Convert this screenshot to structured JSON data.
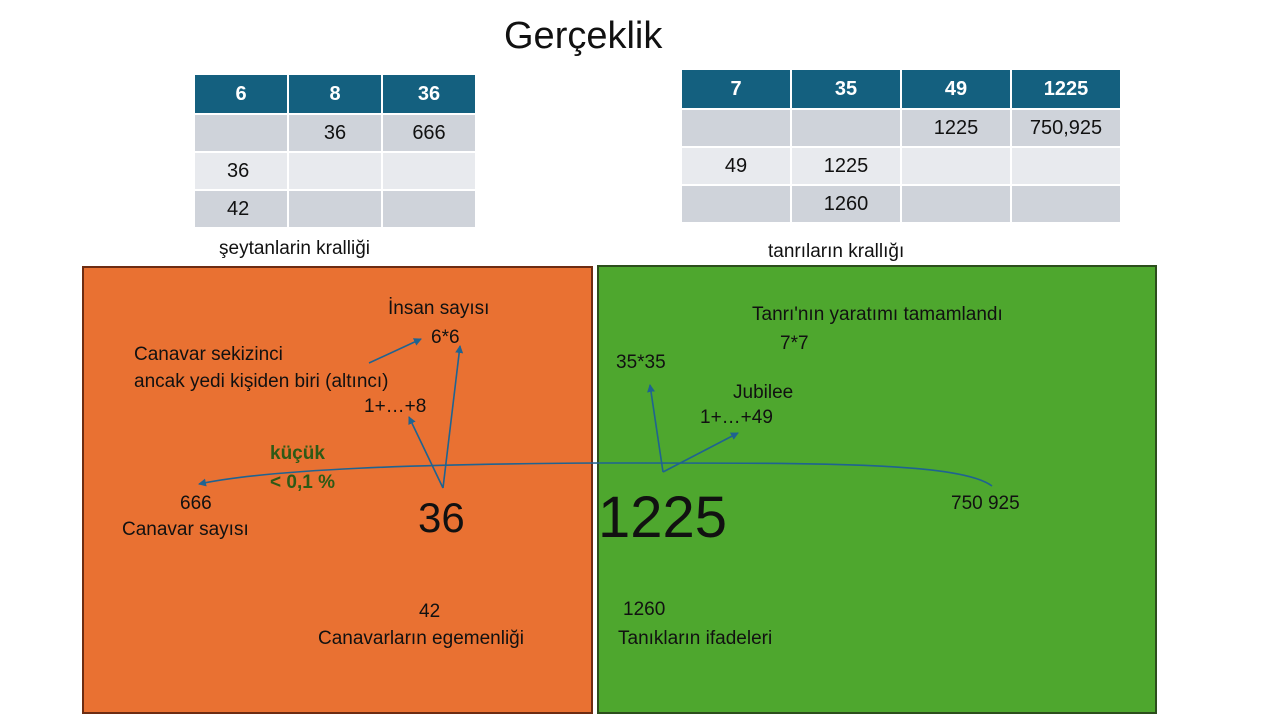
{
  "title": "Gerçeklik",
  "left_table": {
    "headers": [
      "6",
      "8",
      "36"
    ],
    "rows": [
      [
        "",
        "36",
        "666"
      ],
      [
        "36",
        "",
        ""
      ],
      [
        "42",
        "",
        ""
      ]
    ],
    "caption": "şeytanlarin kralliği"
  },
  "right_table": {
    "headers": [
      "7",
      "35",
      "49",
      "1225"
    ],
    "rows": [
      [
        "",
        "",
        "1225",
        "750,925"
      ],
      [
        "49",
        "1225",
        "",
        ""
      ],
      [
        "",
        "1260",
        "",
        ""
      ]
    ],
    "caption": "tanrıların krallığı"
  },
  "orange_panel": {
    "insan_label": "İnsan sayısı",
    "insan_value": "6*6",
    "canavar_line1": "Canavar sekizinci",
    "canavar_line2": "ancak yedi kişiden biri (altıncı)",
    "sum8": "1+…+8",
    "small_label": "küçük",
    "small_value": "< 0,1 %",
    "n666": "666",
    "n666_label": "Canavar sayısı",
    "n36": "36",
    "n42": "42",
    "n42_label": "Canavarların egemenliği"
  },
  "green_panel": {
    "creation_label": "Tanrı'nın yaratımı tamamlandı",
    "creation_value": "7*7",
    "sq35": "35*35",
    "jubilee_label": "Jubilee",
    "sum49": "1+…+49",
    "n1225": "1225",
    "n750925": "750 925",
    "n1260": "1260",
    "n1260_label": "Tanıkların ifadeleri"
  },
  "colors": {
    "header_blue": "#14607f",
    "orange": "#e97132",
    "green": "#4ea72e",
    "arrow": "#1f6391"
  }
}
